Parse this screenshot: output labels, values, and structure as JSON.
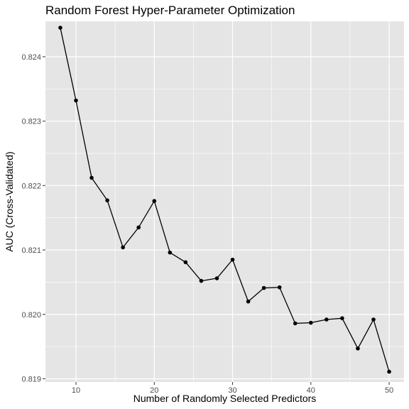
{
  "chart_data": {
    "type": "line",
    "title": "Random Forest Hyper-Parameter Optimization",
    "xlabel": "Number of Randomly Selected Predictors",
    "ylabel": "AUC (Cross-Validated)",
    "x": [
      8,
      10,
      12,
      14,
      16,
      18,
      20,
      22,
      24,
      26,
      28,
      30,
      32,
      34,
      36,
      38,
      40,
      42,
      44,
      46,
      48,
      50
    ],
    "series": [
      {
        "values": [
          0.82445,
          0.82332,
          0.82212,
          0.82177,
          0.82104,
          0.82135,
          0.82176,
          0.82096,
          0.82081,
          0.82052,
          0.82056,
          0.82085,
          0.8202,
          0.82041,
          0.82042,
          0.81986,
          0.81987,
          0.81992,
          0.81994,
          0.81947,
          0.81992,
          0.81911
        ]
      }
    ],
    "xlim": [
      6.1,
      51.9
    ],
    "ylim": [
      0.81895,
      0.82455
    ],
    "xticks": [
      10,
      20,
      30,
      40,
      50
    ],
    "xtick_labels": [
      "10",
      "20",
      "30",
      "40",
      "50"
    ],
    "yticks": [
      0.819,
      0.82,
      0.821,
      0.822,
      0.823,
      0.824
    ],
    "ytick_labels": [
      "0.819",
      "0.820",
      "0.821",
      "0.822",
      "0.823",
      "0.824"
    ],
    "grid": true,
    "colors": {
      "panel": "#e5e5e5",
      "grid": "#ffffff",
      "line": "#000000",
      "point": "#000000"
    }
  }
}
